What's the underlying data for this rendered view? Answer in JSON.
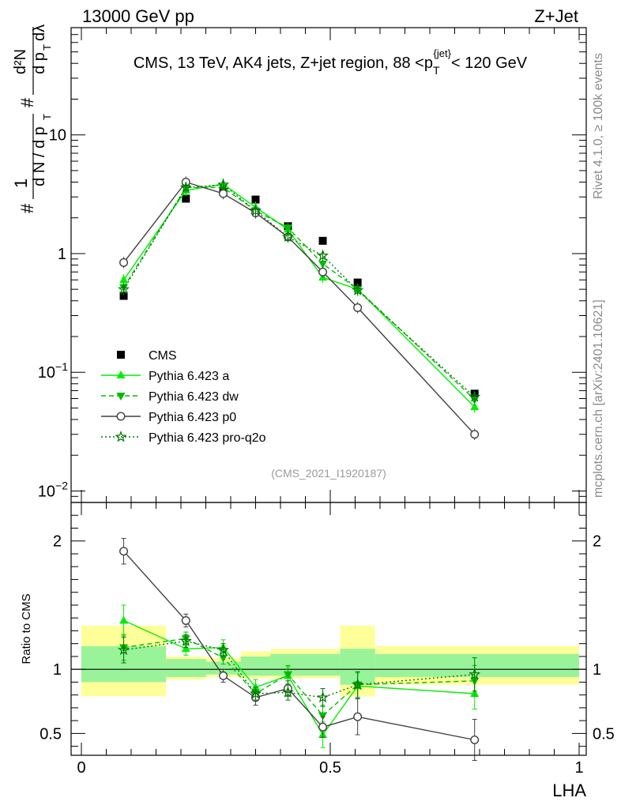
{
  "header": {
    "left": "13000 GeV pp",
    "right": "Z+Jet"
  },
  "side_labels": {
    "rivet": "Rivet 4.1.0, ≥ 100k events",
    "mcplots": "mcplots.cern.ch [arXiv:2401.10621]"
  },
  "colors": {
    "cms": "#000000",
    "pythia_a": "#00ee00",
    "pythia_dw": "#00bb00",
    "pythia_p0": "#404040",
    "pythia_proq2o": "#007700",
    "band_inner": "#99f399",
    "band_outer": "#ffff99"
  },
  "chart_data": [
    {
      "type": "scatter",
      "title": "CMS, 13 TeV, AK4 jets, Z+jet region, 88 <p_T^{jet}< 120 GeV",
      "xlabel": "LHA",
      "ylabel": "1/(dN/dp_T) d^2N/(dp_T dλ)",
      "yscale": "log",
      "xlim": [
        0,
        1
      ],
      "ylim": [
        0.008,
        80
      ],
      "y_ticks": [
        {
          "value": 10,
          "label": "10"
        },
        {
          "value": 1,
          "label": "1"
        },
        {
          "value": 0.1,
          "label": "10^-1"
        },
        {
          "value": 0.01,
          "label": "10^-2"
        }
      ],
      "analysis_label": "(CMS_2021_I1920187)",
      "x": [
        0.085,
        0.21,
        0.285,
        0.35,
        0.415,
        0.485,
        0.555,
        0.79
      ],
      "series": [
        {
          "name": "CMS",
          "style": "data",
          "values": [
            0.44,
            2.9,
            3.3,
            2.85,
            1.7,
            1.28,
            0.57,
            0.066
          ]
        },
        {
          "name": "Pythia 6.423 a",
          "style": "a",
          "values": [
            0.6,
            3.4,
            3.85,
            2.45,
            1.6,
            0.63,
            0.5,
            0.051
          ]
        },
        {
          "name": "Pythia 6.423 dw",
          "style": "dw",
          "values": [
            0.52,
            3.6,
            3.6,
            2.3,
            1.65,
            0.82,
            0.5,
            0.059
          ]
        },
        {
          "name": "Pythia 6.423 p0",
          "style": "p0",
          "values": [
            0.84,
            4.0,
            3.2,
            2.2,
            1.38,
            0.7,
            0.35,
            0.03
          ]
        },
        {
          "name": "Pythia 6.423 pro-q2o",
          "style": "proq2o",
          "values": [
            0.5,
            3.6,
            3.8,
            2.3,
            1.38,
            0.96,
            0.49,
            0.062
          ]
        }
      ]
    },
    {
      "type": "scatter",
      "ylabel": "Ratio to CMS",
      "xlabel": "LHA",
      "xlim": [
        0,
        1
      ],
      "ylim": [
        0.33,
        2.3
      ],
      "x_ticks": [
        {
          "value": 0,
          "label": "0"
        },
        {
          "value": 0.5,
          "label": "0.5"
        },
        {
          "value": 1,
          "label": "1"
        }
      ],
      "y_ticks": [
        {
          "value": 2,
          "label": "2"
        },
        {
          "value": 1,
          "label": "1"
        },
        {
          "value": 0.5,
          "label": "0.5"
        }
      ],
      "bins": [
        {
          "lo": 0.0,
          "hi": 0.17,
          "inner": [
            0.9,
            1.18
          ],
          "outer": [
            0.79,
            1.34
          ]
        },
        {
          "lo": 0.17,
          "hi": 0.25,
          "inner": [
            0.94,
            1.08
          ],
          "outer": [
            0.92,
            1.1
          ]
        },
        {
          "lo": 0.25,
          "hi": 0.32,
          "inner": [
            0.96,
            1.06
          ],
          "outer": [
            0.94,
            1.09
          ]
        },
        {
          "lo": 0.32,
          "hi": 0.38,
          "inner": [
            0.95,
            1.1
          ],
          "outer": [
            0.93,
            1.14
          ]
        },
        {
          "lo": 0.38,
          "hi": 0.45,
          "inner": [
            0.95,
            1.12
          ],
          "outer": [
            0.93,
            1.16
          ]
        },
        {
          "lo": 0.45,
          "hi": 0.52,
          "inner": [
            0.95,
            1.12
          ],
          "outer": [
            0.93,
            1.16
          ]
        },
        {
          "lo": 0.52,
          "hi": 0.59,
          "inner": [
            0.88,
            1.16
          ],
          "outer": [
            0.79,
            1.34
          ]
        },
        {
          "lo": 0.59,
          "hi": 1.0,
          "inner": [
            0.94,
            1.12
          ],
          "outer": [
            0.88,
            1.18
          ]
        }
      ],
      "x": [
        0.085,
        0.21,
        0.285,
        0.35,
        0.415,
        0.485,
        0.555,
        0.79
      ],
      "series": [
        {
          "name": "Pythia 6.423 a",
          "style": "a",
          "values": [
            1.38,
            1.16,
            1.17,
            0.86,
            0.95,
            0.49,
            0.87,
            0.81
          ],
          "errors": [
            0.12,
            0.05,
            0.06,
            0.06,
            0.07,
            0.1,
            0.1,
            0.12
          ]
        },
        {
          "name": "Pythia 6.423 dw",
          "style": "dw",
          "values": [
            1.17,
            1.24,
            1.09,
            0.81,
            0.96,
            0.64,
            0.88,
            0.91
          ],
          "errors": [
            0.1,
            0.05,
            0.05,
            0.05,
            0.07,
            0.08,
            0.1,
            0.12
          ]
        },
        {
          "name": "Pythia 6.423 p0",
          "style": "p0",
          "values": [
            1.92,
            1.38,
            0.95,
            0.78,
            0.85,
            0.55,
            0.63,
            0.45
          ],
          "errors": [
            0.1,
            0.05,
            0.05,
            0.06,
            0.06,
            0.08,
            0.14,
            0.16
          ]
        },
        {
          "name": "Pythia 6.423 pro-q2o",
          "style": "proq2o",
          "values": [
            1.15,
            1.22,
            1.15,
            0.81,
            0.82,
            0.78,
            0.88,
            0.96
          ],
          "errors": [
            0.1,
            0.05,
            0.05,
            0.05,
            0.06,
            0.07,
            0.1,
            0.13
          ]
        }
      ]
    }
  ]
}
